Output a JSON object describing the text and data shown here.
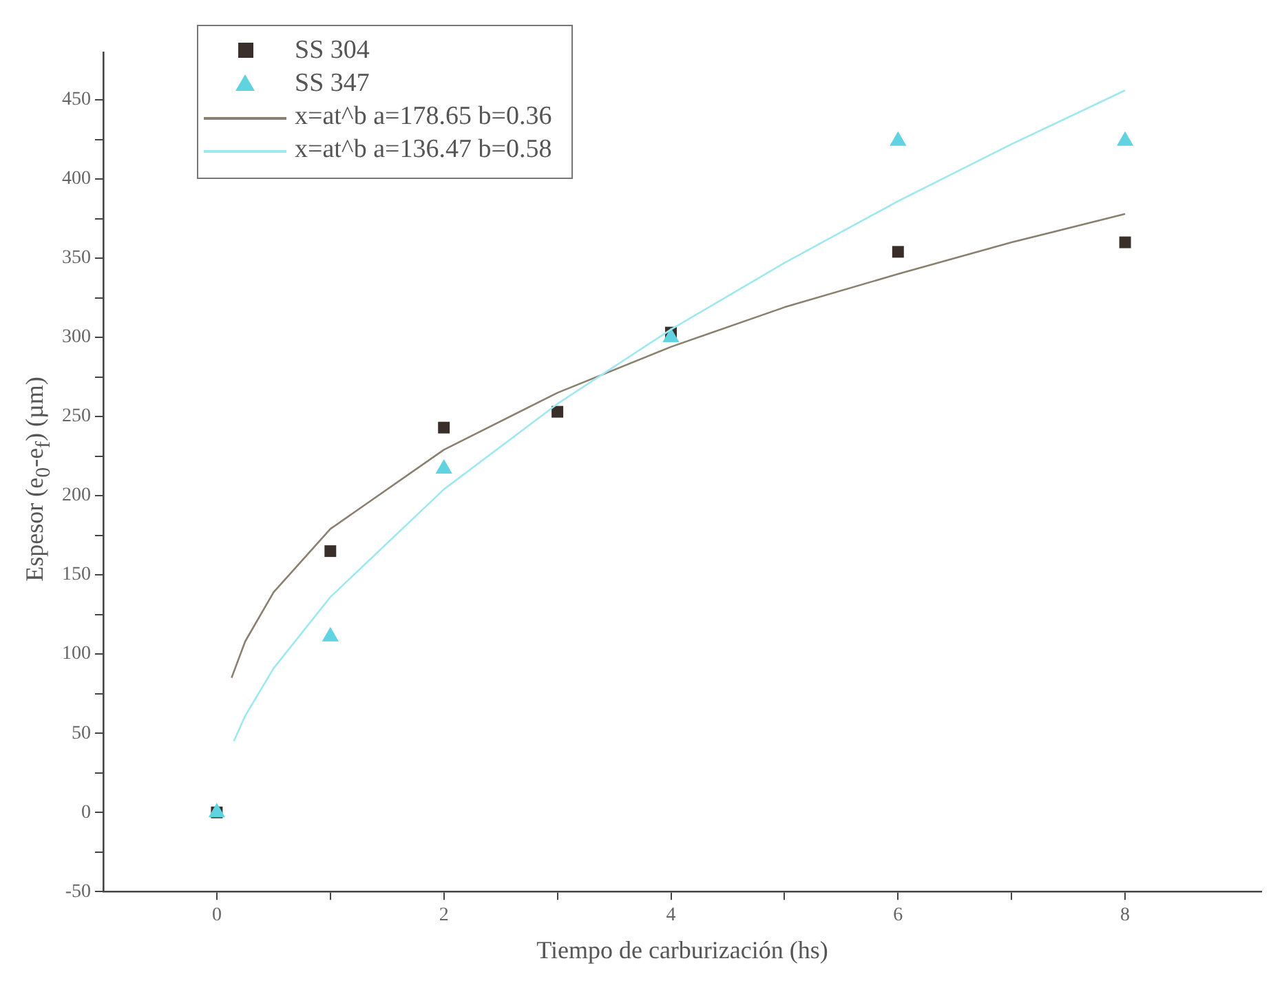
{
  "chart_data": {
    "type": "scatter",
    "xlabel": "Tiempo de carburización (hs)",
    "ylabel": "Espesor (e$_{0}$-e$_{f}$) (µm)",
    "xlim": [
      -1,
      9.2
    ],
    "ylim": [
      -50,
      480
    ],
    "xticks": [
      0,
      {
        "value": 1,
        "label": null
      },
      2,
      {
        "value": 3,
        "label": null
      },
      4,
      {
        "value": 5,
        "label": null
      },
      6,
      {
        "value": 7,
        "label": null
      },
      8
    ],
    "yticks": [
      -50,
      {
        "value": -25,
        "label": null
      },
      0,
      {
        "value": 25,
        "label": null
      },
      50,
      {
        "value": 75,
        "label": null
      },
      100,
      {
        "value": 125,
        "label": null
      },
      150,
      {
        "value": 175,
        "label": null
      },
      200,
      {
        "value": 225,
        "label": null
      },
      250,
      {
        "value": 275,
        "label": null
      },
      300,
      {
        "value": 325,
        "label": null
      },
      350,
      {
        "value": 375,
        "label": null
      },
      400,
      {
        "value": 425,
        "label": null
      },
      450
    ],
    "grid": false,
    "legend": "top left",
    "series": [
      {
        "name": "SS 304",
        "color": "#3a2e2a",
        "marker": "square",
        "x": [
          0,
          1,
          2,
          3,
          4,
          6,
          8
        ],
        "values": [
          0,
          165,
          243,
          253,
          303,
          354,
          360
        ]
      },
      {
        "name": "SS 347",
        "color": "#5fd3e0",
        "marker": "triangle",
        "x": [
          0,
          1,
          2,
          4,
          6,
          8
        ],
        "values": [
          0,
          111,
          217,
          300,
          424,
          424
        ]
      },
      {
        "name": "x=at^b a=178.65 b=0.36",
        "type": "line",
        "color": "#8a8070",
        "marker": "none",
        "x": [
          0.13,
          0.25,
          0.5,
          1,
          2,
          3,
          4,
          5,
          6,
          7,
          8
        ],
        "values": [
          85,
          108,
          139,
          179,
          229,
          265,
          294,
          319,
          340,
          360,
          378
        ]
      },
      {
        "name": "x=at^b a=136.47 b=0.58",
        "type": "line",
        "color": "#9fe8f0",
        "marker": "none",
        "x": [
          0.15,
          0.25,
          0.5,
          1,
          2,
          3,
          4,
          5,
          6,
          7,
          8
        ],
        "values": [
          45,
          61,
          91,
          136,
          204,
          258,
          305,
          347,
          386,
          422,
          456
        ]
      }
    ]
  }
}
